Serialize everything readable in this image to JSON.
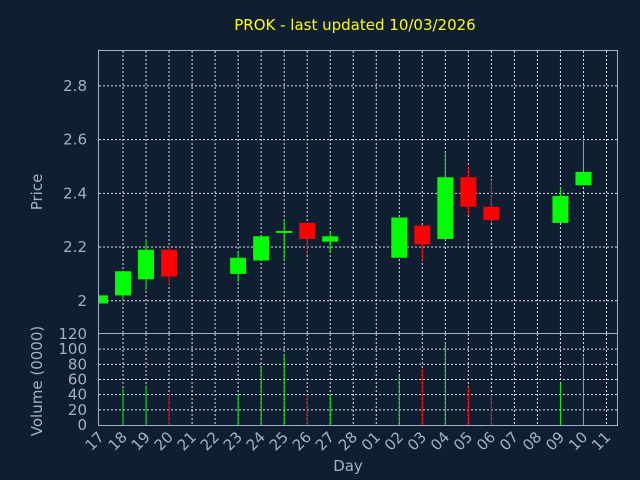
{
  "chart_data": {
    "type": "candlestick",
    "title": "PROK - last updated 10/03/2026",
    "xlabel": "Day",
    "ylabel_price": "Price",
    "ylabel_volume": "Volume (0000)",
    "price_ylim": [
      1.88,
      2.93
    ],
    "price_ticks": [
      "2",
      "2.2",
      "2.4",
      "2.6",
      "2.8"
    ],
    "volume_ylim": [
      0,
      120
    ],
    "volume_ticks": [
      "0",
      "20",
      "40",
      "60",
      "80",
      "100",
      "120"
    ],
    "x_labels": [
      "17",
      "18",
      "19",
      "20",
      "21",
      "22",
      "23",
      "24",
      "25",
      "26",
      "27",
      "28",
      "01",
      "02",
      "03",
      "04",
      "05",
      "06",
      "07",
      "08",
      "09",
      "10",
      "11"
    ],
    "colors": {
      "up": "#00ff00",
      "down": "#ff0000",
      "title": "#ffff00",
      "axis": "#9fb3c8",
      "background": "#0f1e31"
    },
    "candles": [
      {
        "day": "17",
        "open": 1.99,
        "high": 2.02,
        "low": 1.99,
        "close": 2.02,
        "volume": 0
      },
      {
        "day": "18",
        "open": 2.02,
        "high": 2.11,
        "low": 2.0,
        "close": 2.11,
        "volume": 48
      },
      {
        "day": "19",
        "open": 2.08,
        "high": 2.23,
        "low": 2.04,
        "close": 2.19,
        "volume": 52
      },
      {
        "day": "20",
        "open": 2.19,
        "high": 2.2,
        "low": 2.06,
        "close": 2.09,
        "volume": 42
      },
      {
        "day": "23",
        "open": 2.1,
        "high": 2.18,
        "low": 2.07,
        "close": 2.16,
        "volume": 40
      },
      {
        "day": "24",
        "open": 2.15,
        "high": 2.24,
        "low": 2.15,
        "close": 2.24,
        "volume": 78
      },
      {
        "day": "25",
        "open": 2.26,
        "high": 2.3,
        "low": 2.15,
        "close": 2.26,
        "volume": 92
      },
      {
        "day": "26",
        "open": 2.29,
        "high": 2.29,
        "low": 2.17,
        "close": 2.23,
        "volume": 40
      },
      {
        "day": "27",
        "open": 2.22,
        "high": 2.26,
        "low": 2.18,
        "close": 2.24,
        "volume": 40
      },
      {
        "day": "02",
        "open": 2.16,
        "high": 2.31,
        "low": 2.16,
        "close": 2.31,
        "volume": 65
      },
      {
        "day": "03",
        "open": 2.28,
        "high": 2.28,
        "low": 2.15,
        "close": 2.21,
        "volume": 74
      },
      {
        "day": "04",
        "open": 2.23,
        "high": 2.55,
        "low": 2.23,
        "close": 2.46,
        "volume": 108
      },
      {
        "day": "05",
        "open": 2.46,
        "high": 2.5,
        "low": 2.32,
        "close": 2.35,
        "volume": 50
      },
      {
        "day": "06",
        "open": 2.35,
        "high": 2.45,
        "low": 2.29,
        "close": 2.3,
        "volume": 40
      },
      {
        "day": "09",
        "open": 2.29,
        "high": 2.42,
        "low": 2.29,
        "close": 2.39,
        "volume": 55
      },
      {
        "day": "10",
        "open": 2.43,
        "high": 2.61,
        "low": 2.43,
        "close": 2.48,
        "volume": 90
      }
    ]
  }
}
